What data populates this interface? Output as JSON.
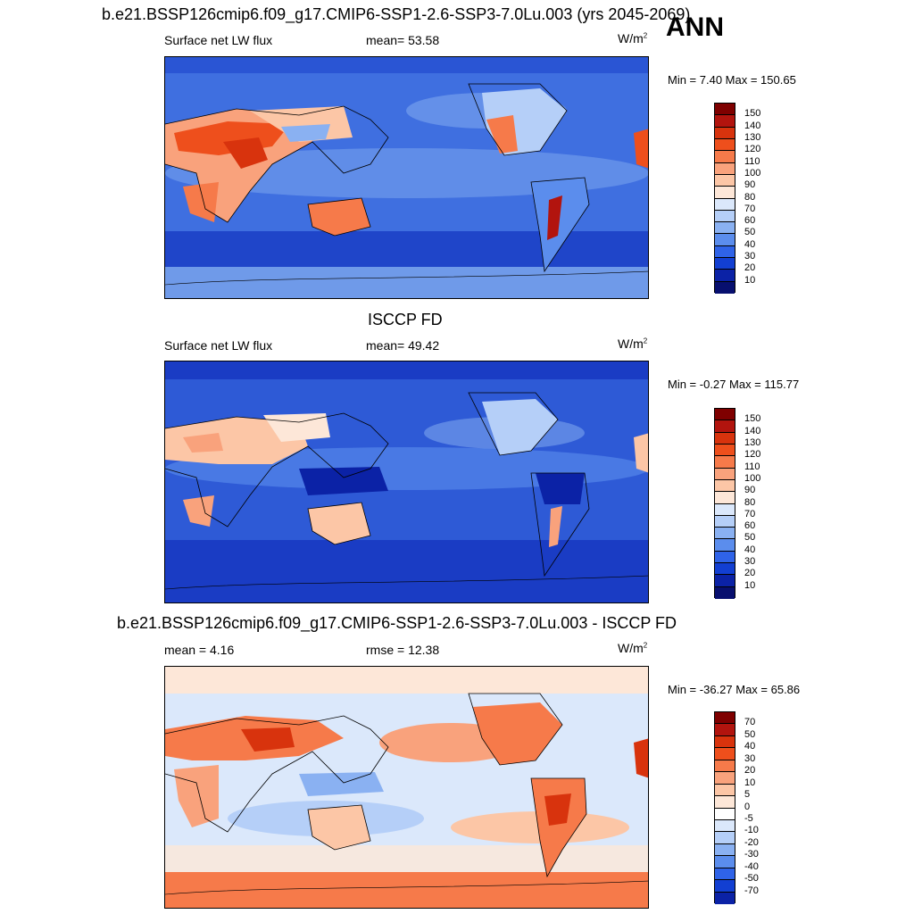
{
  "panel_top": {
    "title": "b.e21.BSSP126cmip6.f09_g17.CMIP6-SSP1-2.6-SSP3-7.0Lu.003 (yrs 2045-2069)",
    "season": "ANN",
    "variable": "Surface net LW flux",
    "mean_label": "mean=  53.58",
    "units": "W/m",
    "units_sup": "2",
    "minmax": "Min =   7.40 Max = 150.65",
    "colorbar_labels": [
      "150",
      "140",
      "130",
      "120",
      "110",
      "100",
      "90",
      "80",
      "70",
      "60",
      "50",
      "40",
      "30",
      "20",
      "10"
    ]
  },
  "panel_mid": {
    "title": "ISCCP FD",
    "variable": "Surface net LW flux",
    "mean_label": "mean=  49.42",
    "units": "W/m",
    "units_sup": "2",
    "minmax": "Min =  -0.27 Max = 115.77",
    "colorbar_labels": [
      "150",
      "140",
      "130",
      "120",
      "110",
      "100",
      "90",
      "80",
      "70",
      "60",
      "50",
      "40",
      "30",
      "20",
      "10"
    ]
  },
  "panel_bot": {
    "title": "b.e21.BSSP126cmip6.f09_g17.CMIP6-SSP1-2.6-SSP3-7.0Lu.003 - ISCCP FD",
    "mean_label": "mean =   4.16",
    "rmse_label": "rmse =  12.38",
    "units": "W/m",
    "units_sup": "2",
    "minmax": "Min = -36.27 Max =  65.86",
    "colorbar_labels": [
      "70",
      "50",
      "40",
      "30",
      "20",
      "10",
      "5",
      "0",
      "-5",
      "-10",
      "-20",
      "-30",
      "-40",
      "-50",
      "-70"
    ]
  },
  "colors": {
    "seq_scale": [
      "#7f0000",
      "#b2140e",
      "#d8330d",
      "#ee4f1c",
      "#f67a4a",
      "#f9a27c",
      "#fcc6a6",
      "#fde7d8",
      "#dbe8fb",
      "#b5cff8",
      "#8ab1f2",
      "#5b8ded",
      "#2f63e8",
      "#123fd2",
      "#0b22a6",
      "#070f6f"
    ],
    "div_scale": [
      "#7f0000",
      "#b2140e",
      "#d8330d",
      "#ee4f1c",
      "#f67a4a",
      "#f9a27c",
      "#fcc6a6",
      "#fde7d8",
      "#ffffff",
      "#dbe8fb",
      "#b5cff8",
      "#8ab1f2",
      "#5b8ded",
      "#2f63e8",
      "#123fd2",
      "#0b22a6",
      "#070f6f"
    ],
    "ocean_top": "#3f6fe0",
    "ocean_mid": "#2e5ad6",
    "ocean_bot": "#cfe0fb",
    "land_warm": "#f3875a",
    "land_hot": "#d8330d"
  }
}
